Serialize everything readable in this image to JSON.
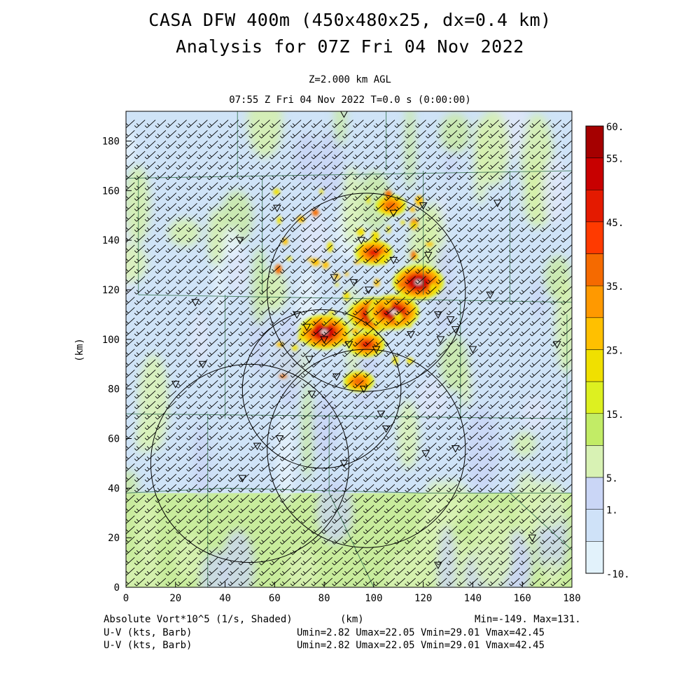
{
  "header": {
    "title_line1": "CASA DFW 400m (450x480x25, dx=0.4 km)",
    "title_line2": "Analysis for 07Z Fri 04 Nov 2022",
    "level": "Z=2.000 km AGL",
    "time_line": "07:55 Z Fri 04 Nov 2022   T=0.0 s (0:00:00)"
  },
  "footer": {
    "field_label": "Absolute Vort*10^5 (1/s, Shaded)",
    "xunit": "(km)",
    "field_stats": "Min=-149. Max=131.",
    "barb_label_1": "U-V (kts, Barb)",
    "barb_label_2": "U-V (kts, Barb)",
    "barb_stats_1": "Umin=2.82 Umax=22.05 Vmin=29.01 Vmax=42.45",
    "barb_stats_2": "Umin=2.82 Umax=22.05 Vmin=29.01 Vmax=42.45"
  },
  "chart_data": {
    "type": "heatmap",
    "field": "Absolute Vort*10^5 (1/s, Shaded)",
    "ylabel": "(km)",
    "xlabel": "(km)",
    "xlim": [
      0,
      180
    ],
    "ylim": [
      0,
      192
    ],
    "x_ticks": [
      0,
      20,
      40,
      60,
      80,
      100,
      120,
      140,
      160,
      180
    ],
    "y_ticks": [
      0,
      20,
      40,
      60,
      80,
      100,
      120,
      140,
      160,
      180
    ],
    "colorbar": {
      "labels": [
        "60.",
        "55.",
        "45.",
        "35.",
        "25.",
        "15.",
        "5.",
        "1.",
        "-10."
      ],
      "colors": [
        "#a50000",
        "#c80000",
        "#e41a00",
        "#ff3a00",
        "#f56a00",
        "#ff9900",
        "#ffc000",
        "#f0e000",
        "#ddf020",
        "#c2ec66",
        "#d8f2b4",
        "#cad6f6",
        "#cfe2f8",
        "#e2f2fb"
      ]
    },
    "background_field": {
      "north_band": "#cfe3f7",
      "south_band": "#c8ec9c",
      "south_band_top_km": 38
    },
    "vorticity_max_centers": [
      {
        "x": 80,
        "y": 103,
        "value": 60
      },
      {
        "x": 100,
        "y": 110,
        "value": 60
      },
      {
        "x": 108,
        "y": 111,
        "value": 60
      },
      {
        "x": 118,
        "y": 123,
        "value": 60
      },
      {
        "x": 100,
        "y": 135,
        "value": 45
      },
      {
        "x": 97,
        "y": 98,
        "value": 45
      },
      {
        "x": 107,
        "y": 154,
        "value": 35
      },
      {
        "x": 94,
        "y": 83,
        "value": 35
      }
    ],
    "radar_circles": [
      {
        "x": 97,
        "y": 119,
        "r": 40
      },
      {
        "x": 79,
        "y": 80,
        "r": 32
      },
      {
        "x": 97,
        "y": 56,
        "r": 40
      },
      {
        "x": 50,
        "y": 50,
        "r": 40
      }
    ],
    "wind_barb_stats": {
      "umin": 2.82,
      "umax": 22.05,
      "vmin": 29.01,
      "vmax": 42.45,
      "units": "kts"
    }
  }
}
